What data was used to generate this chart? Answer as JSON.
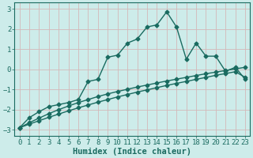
{
  "xlabel": "Humidex (Indice chaleur)",
  "bg_color": "#cdecea",
  "grid_color": "#b8d8d6",
  "line_color": "#1a6b60",
  "xlim": [
    -0.5,
    23.5
  ],
  "ylim": [
    -3.3,
    3.3
  ],
  "yticks": [
    -3,
    -2,
    -1,
    0,
    1,
    2,
    3
  ],
  "xticks": [
    0,
    1,
    2,
    3,
    4,
    5,
    6,
    7,
    8,
    9,
    10,
    11,
    12,
    13,
    14,
    15,
    16,
    17,
    18,
    19,
    20,
    21,
    22,
    23
  ],
  "main_line_x": [
    0,
    1,
    2,
    3,
    4,
    5,
    6,
    7,
    8,
    9,
    10,
    11,
    12,
    13,
    14,
    15,
    16,
    17,
    18,
    19,
    20,
    21,
    22,
    23
  ],
  "main_line_y": [
    -2.9,
    -2.4,
    -2.1,
    -1.85,
    -1.75,
    -1.65,
    -1.5,
    -0.6,
    -0.5,
    0.6,
    0.7,
    1.3,
    1.5,
    2.1,
    2.2,
    2.85,
    2.1,
    0.5,
    1.3,
    0.65,
    0.65,
    -0.1,
    0.1,
    -0.5
  ],
  "line2_x": [
    0,
    1,
    2,
    3,
    4,
    5,
    6,
    7,
    8,
    9,
    10,
    11,
    12,
    13,
    14,
    15,
    16,
    17,
    18,
    19,
    20,
    21,
    22,
    23
  ],
  "line2_y": [
    -2.9,
    -2.65,
    -2.42,
    -2.2,
    -2.0,
    -1.82,
    -1.65,
    -1.5,
    -1.35,
    -1.22,
    -1.1,
    -0.99,
    -0.88,
    -0.78,
    -0.68,
    -0.58,
    -0.49,
    -0.4,
    -0.31,
    -0.22,
    -0.14,
    -0.06,
    0.02,
    0.1
  ],
  "line3_x": [
    0,
    1,
    2,
    3,
    4,
    5,
    6,
    7,
    8,
    9,
    10,
    11,
    12,
    13,
    14,
    15,
    16,
    17,
    18,
    19,
    20,
    21,
    22,
    23
  ],
  "line3_y": [
    -2.9,
    -2.72,
    -2.55,
    -2.38,
    -2.22,
    -2.06,
    -1.91,
    -1.77,
    -1.63,
    -1.5,
    -1.37,
    -1.25,
    -1.13,
    -1.02,
    -0.91,
    -0.8,
    -0.7,
    -0.6,
    -0.5,
    -0.4,
    -0.3,
    -0.21,
    -0.12,
    -0.4
  ],
  "marker": "D",
  "marker_size": 2.5,
  "line_width": 1.0,
  "tick_fontsize": 6.5,
  "label_fontsize": 7.5
}
